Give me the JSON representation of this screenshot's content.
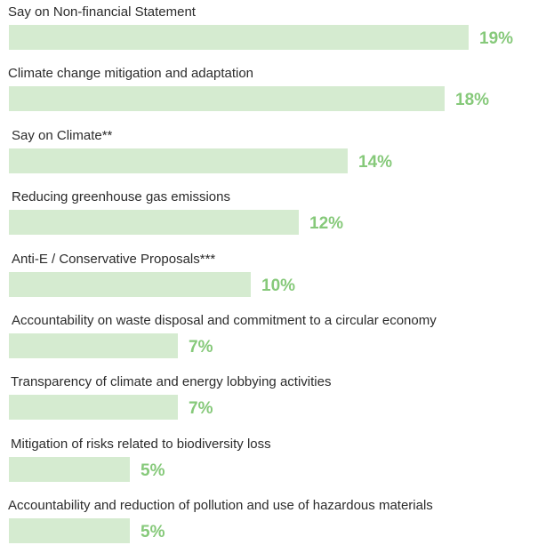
{
  "chart_data": {
    "type": "bar",
    "orientation": "horizontal",
    "title": "",
    "xlabel": "",
    "ylabel": "",
    "value_unit": "%",
    "grid": false,
    "legend": "none",
    "categories": [
      "Say on Non-financial Statement",
      "Climate change mitigation and adaptation",
      "Say on Climate**",
      "Reducing greenhouse gas emissions",
      "Anti-E / Conservative Proposals***",
      "Accountability on waste disposal and commitment to a circular economy",
      "Transparency of climate and energy lobbying activities",
      "Mitigation of risks related to biodiversity loss",
      "Accountability and reduction of pollution and use of hazardous materials"
    ],
    "values": [
      19,
      18,
      14,
      12,
      10,
      7,
      7,
      5,
      5
    ],
    "value_labels": [
      "19%",
      "18%",
      "14%",
      "12%",
      "10%",
      "7%",
      "7%",
      "5%",
      "5%"
    ],
    "colors": {
      "bar": "#d5ebd0",
      "value_label": "#86c97a",
      "category_label": "#2b2b2b"
    }
  }
}
